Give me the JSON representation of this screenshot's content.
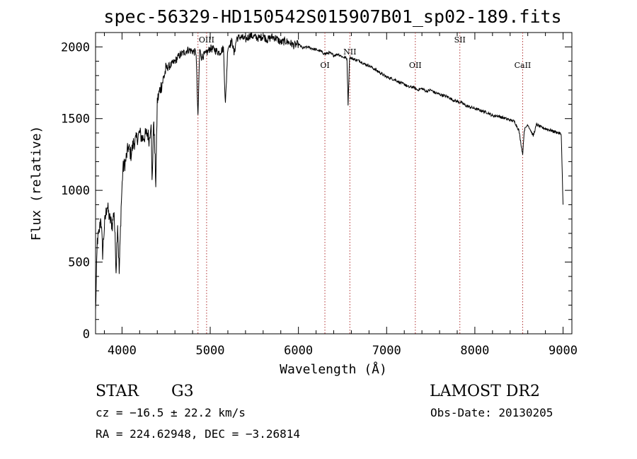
{
  "chart_data": {
    "type": "line",
    "title": "spec-56329-HD150542S015907B01_sp02-189.fits",
    "xlabel": "Wavelength (Å)",
    "ylabel": "Flux (relative)",
    "xlim": [
      3700,
      9100
    ],
    "ylim": [
      0,
      2100
    ],
    "xticks": [
      4000,
      5000,
      6000,
      7000,
      8000,
      9000
    ],
    "yticks": [
      0,
      500,
      1000,
      1500,
      2000
    ],
    "grid": false,
    "series": [
      {
        "x": [
          3700,
          3720,
          3740,
          3760,
          3780,
          3800,
          3830,
          3860,
          3890,
          3910,
          3933,
          3950,
          3968,
          3990,
          4010,
          4040,
          4070,
          4101,
          4130,
          4160,
          4200,
          4230,
          4260,
          4290,
          4310,
          4330,
          4340,
          4360,
          4383,
          4400,
          4430,
          4470,
          4500,
          4550,
          4600,
          4650,
          4700,
          4750,
          4800,
          4840,
          4861,
          4880,
          4900,
          4950,
          5000,
          5050,
          5100,
          5150,
          5172,
          5200,
          5250,
          5270,
          5300,
          5350,
          5400,
          5450,
          5500,
          5550,
          5600,
          5650,
          5700,
          5750,
          5800,
          5850,
          5900,
          5950,
          6000,
          6050,
          6100,
          6150,
          6200,
          6250,
          6300,
          6350,
          6400,
          6450,
          6500,
          6550,
          6563,
          6580,
          6600,
          6650,
          6700,
          6750,
          6800,
          6850,
          6900,
          6950,
          7000,
          7050,
          7100,
          7150,
          7200,
          7250,
          7300,
          7350,
          7400,
          7450,
          7500,
          7550,
          7600,
          7650,
          7700,
          7750,
          7800,
          7850,
          7900,
          7950,
          8000,
          8050,
          8100,
          8150,
          8200,
          8250,
          8300,
          8350,
          8400,
          8450,
          8498,
          8542,
          8560,
          8600,
          8662,
          8700,
          8750,
          8800,
          8850,
          8900,
          8950,
          8980,
          9000
        ],
        "values": [
          150,
          650,
          700,
          820,
          560,
          750,
          900,
          800,
          760,
          860,
          450,
          780,
          420,
          880,
          1150,
          1200,
          1300,
          1250,
          1330,
          1350,
          1400,
          1360,
          1380,
          1400,
          1350,
          1500,
          1050,
          1500,
          1050,
          1620,
          1700,
          1780,
          1850,
          1870,
          1900,
          1940,
          1960,
          1980,
          1970,
          1960,
          1500,
          1980,
          1930,
          1950,
          1990,
          1980,
          1960,
          1990,
          1600,
          2000,
          2040,
          1950,
          2060,
          2070,
          2050,
          2080,
          2070,
          2060,
          2075,
          2050,
          2070,
          2060,
          2030,
          2040,
          2030,
          2010,
          2020,
          1990,
          2000,
          1990,
          1980,
          1970,
          1950,
          1960,
          1940,
          1950,
          1930,
          1920,
          1600,
          1930,
          1920,
          1910,
          1900,
          1880,
          1870,
          1850,
          1830,
          1810,
          1790,
          1780,
          1770,
          1750,
          1740,
          1720,
          1720,
          1700,
          1710,
          1690,
          1700,
          1680,
          1670,
          1660,
          1650,
          1630,
          1620,
          1610,
          1590,
          1580,
          1570,
          1560,
          1550,
          1540,
          1520,
          1520,
          1510,
          1500,
          1490,
          1480,
          1420,
          1250,
          1420,
          1460,
          1380,
          1460,
          1440,
          1430,
          1420,
          1410,
          1400,
          1390,
          900
        ]
      }
    ],
    "annotations": [
      {
        "label": "OIII",
        "x": 4959
      },
      {
        "label": "OI",
        "x": 6300
      },
      {
        "label": "NII",
        "x": 6583
      },
      {
        "label": "OII",
        "x": 7325
      },
      {
        "label": "SII",
        "x": 7830
      },
      {
        "label": "CaII",
        "x": 8542
      }
    ],
    "reference_lines": [
      4861,
      4959,
      6300,
      6583,
      7325,
      7830,
      8542
    ]
  },
  "info": {
    "object_class": "STAR",
    "subclass": "G3",
    "survey": "LAMOST DR2",
    "cz": "cz = −16.5 ± 22.2 km/s",
    "obs_date": "Obs-Date: 20130205",
    "coords": "RA = 224.62948, DEC =  −3.26814"
  }
}
